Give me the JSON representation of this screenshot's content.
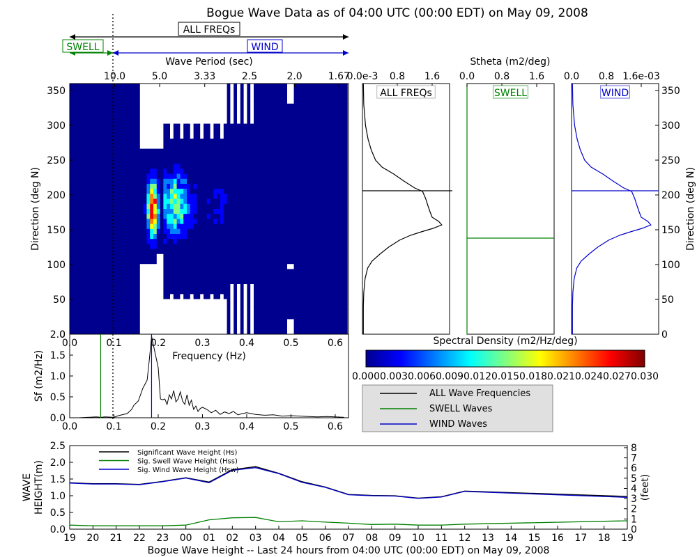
{
  "title": "Bogue Wave Data as of 04:00 UTC (00:00 EDT) on May 09, 2008",
  "colors": {
    "all": "#000000",
    "swell": "#008000",
    "wind": "#0000cc",
    "colormap": [
      "#00008f",
      "#0000ff",
      "#0080ff",
      "#00ffff",
      "#80ff80",
      "#ffff00",
      "#ff8000",
      "#ff0000",
      "#800000"
    ]
  },
  "bands": {
    "all_label": "ALL FREQs",
    "swell_label": "SWELL",
    "wind_label": "WIND"
  },
  "spectrogram": {
    "period_axis_label": "Wave Period (sec)",
    "period_ticks": [
      "10.0",
      "5.0",
      "3.33",
      "2.5",
      "2.0",
      "1.67"
    ],
    "freq_axis_label": "Frequency (Hz)",
    "freq_ticks": [
      "0.0",
      "0.1",
      "0.2",
      "0.3",
      "0.4",
      "0.5",
      "0.6"
    ],
    "dir_axis_label": "Direction (deg N)",
    "dir_ticks": [
      "0",
      "50",
      "100",
      "150",
      "200",
      "250",
      "300",
      "350"
    ],
    "xlim": [
      0,
      0.62
    ],
    "ylim": [
      0,
      360
    ]
  },
  "stheta": {
    "axis_title": "Stheta (m2/deg)",
    "panels": [
      {
        "label": "ALL FREQs",
        "ticks": [
          "0.0e-3",
          "0.8",
          "1.6"
        ],
        "xmax": 2.0,
        "peak_dir": 206,
        "profile": [
          [
            0,
            0.02
          ],
          [
            20,
            0.02
          ],
          [
            40,
            0.02
          ],
          [
            60,
            0.03
          ],
          [
            80,
            0.06
          ],
          [
            95,
            0.12
          ],
          [
            105,
            0.22
          ],
          [
            115,
            0.4
          ],
          [
            125,
            0.6
          ],
          [
            135,
            0.85
          ],
          [
            142,
            1.1
          ],
          [
            147,
            1.35
          ],
          [
            152,
            1.62
          ],
          [
            157,
            1.82
          ],
          [
            162,
            1.75
          ],
          [
            168,
            1.6
          ],
          [
            176,
            1.55
          ],
          [
            185,
            1.5
          ],
          [
            195,
            1.45
          ],
          [
            205,
            1.38
          ],
          [
            210,
            1.2
          ],
          [
            220,
            0.95
          ],
          [
            230,
            0.72
          ],
          [
            240,
            0.45
          ],
          [
            250,
            0.3
          ],
          [
            265,
            0.2
          ],
          [
            280,
            0.13
          ],
          [
            300,
            0.07
          ],
          [
            330,
            0.03
          ],
          [
            360,
            0.02
          ]
        ]
      },
      {
        "label": "SWELL",
        "ticks": [
          "0.0",
          "0.8",
          "1.6"
        ],
        "xmax": 2.0,
        "peak_dir": 138,
        "profile": [
          [
            0,
            0.0
          ],
          [
            360,
            0.0
          ]
        ]
      },
      {
        "label": "WIND",
        "ticks": [
          "0.0",
          "0.8",
          "1.6e-03"
        ],
        "xmax": 2.0,
        "peak_dir": 206,
        "profile": [
          [
            0,
            0.02
          ],
          [
            20,
            0.02
          ],
          [
            40,
            0.02
          ],
          [
            60,
            0.03
          ],
          [
            80,
            0.06
          ],
          [
            95,
            0.12
          ],
          [
            105,
            0.22
          ],
          [
            115,
            0.4
          ],
          [
            125,
            0.6
          ],
          [
            135,
            0.85
          ],
          [
            142,
            1.1
          ],
          [
            147,
            1.35
          ],
          [
            152,
            1.62
          ],
          [
            157,
            1.82
          ],
          [
            162,
            1.75
          ],
          [
            168,
            1.6
          ],
          [
            176,
            1.55
          ],
          [
            185,
            1.5
          ],
          [
            195,
            1.45
          ],
          [
            205,
            1.38
          ],
          [
            210,
            1.2
          ],
          [
            220,
            0.95
          ],
          [
            230,
            0.72
          ],
          [
            240,
            0.45
          ],
          [
            250,
            0.3
          ],
          [
            265,
            0.2
          ],
          [
            280,
            0.13
          ],
          [
            300,
            0.07
          ],
          [
            330,
            0.03
          ],
          [
            360,
            0.02
          ]
        ]
      }
    ],
    "ticks_right": [
      "0",
      "50",
      "100",
      "150",
      "200",
      "250",
      "300",
      "350"
    ],
    "right_label": "Direction (deg N)"
  },
  "colorbar": {
    "label": "Spectral Density (m2/Hz/deg)",
    "ticks": [
      "0.000",
      "0.003",
      "0.006",
      "0.009",
      "0.012",
      "0.015",
      "0.018",
      "0.021",
      "0.024",
      "0.027",
      "0.030"
    ]
  },
  "legend_spectrum": [
    "ALL Wave Frequencies",
    "SWELL Waves",
    "WIND Waves"
  ],
  "chart_data": [
    {
      "type": "line",
      "title": "",
      "xlabel": "Frequency (Hz)",
      "ylabel": "Sf (m2/Hz)",
      "xlim": [
        0,
        0.63
      ],
      "ylim": [
        0,
        2.0
      ],
      "yticks": [
        "0.0",
        "0.5",
        "1.0",
        "1.5",
        "2.0"
      ],
      "xticks": [
        "0.0",
        "0.1",
        "0.2",
        "0.3",
        "0.4",
        "0.5",
        "0.6"
      ],
      "swell_peak_freq": 0.07,
      "wind_peak_freq": 0.185,
      "series": [
        {
          "x": [
            0.0,
            0.02,
            0.04,
            0.06,
            0.07,
            0.08,
            0.1,
            0.11,
            0.13,
            0.14,
            0.145,
            0.155,
            0.165,
            0.175,
            0.18,
            0.185,
            0.19,
            0.2,
            0.205,
            0.21,
            0.215,
            0.22,
            0.225,
            0.23,
            0.235,
            0.24,
            0.245,
            0.25,
            0.255,
            0.26,
            0.265,
            0.27,
            0.275,
            0.28,
            0.285,
            0.29,
            0.295,
            0.3,
            0.31,
            0.32,
            0.33,
            0.34,
            0.35,
            0.36,
            0.37,
            0.38,
            0.39,
            0.4,
            0.42,
            0.44,
            0.46,
            0.48,
            0.5,
            0.52,
            0.54,
            0.56,
            0.58,
            0.6,
            0.62
          ],
          "y": [
            0.0,
            0.0,
            0.01,
            0.02,
            0.01,
            0.02,
            0.01,
            0.05,
            0.1,
            0.2,
            0.3,
            0.4,
            0.7,
            0.9,
            1.4,
            1.95,
            1.7,
            1.2,
            0.45,
            0.43,
            0.45,
            0.32,
            0.55,
            0.45,
            0.65,
            0.38,
            0.45,
            0.62,
            0.4,
            0.32,
            0.55,
            0.3,
            0.42,
            0.2,
            0.28,
            0.15,
            0.22,
            0.25,
            0.2,
            0.12,
            0.18,
            0.08,
            0.14,
            0.1,
            0.15,
            0.07,
            0.1,
            0.12,
            0.08,
            0.06,
            0.07,
            0.04,
            0.05,
            0.04,
            0.03,
            0.02,
            0.03,
            0.02,
            0.01
          ]
        }
      ]
    },
    {
      "type": "line",
      "title": "",
      "xlabel": "Bogue Wave Height -- Last 24 hours from 04:00 UTC (00:00 EDT) on May 09, 2008",
      "ylabel": "WAVE HEIGHT(m)",
      "ylabel_right": "(feet)",
      "categories": [
        "19",
        "20",
        "21",
        "22",
        "23",
        "00",
        "01",
        "02",
        "03",
        "04",
        "05",
        "06",
        "07",
        "08",
        "09",
        "10",
        "11",
        "12",
        "13",
        "14",
        "15",
        "16",
        "17",
        "18",
        "19"
      ],
      "ylim": [
        0,
        2.5
      ],
      "yticks": [
        "0.0",
        "0.5",
        "1.0",
        "1.5",
        "2.0",
        "2.5"
      ],
      "yticks_right": [
        "0",
        "1",
        "2",
        "3",
        "4",
        "5",
        "6",
        "7",
        "8"
      ],
      "legend_position": "top-left",
      "series": [
        {
          "name": "Significant Wave Height (Hs)",
          "color": "#000000",
          "x": [
            0,
            1,
            2,
            3,
            4,
            5,
            6,
            7,
            8,
            9,
            10,
            11,
            12,
            13,
            14,
            15,
            16,
            17,
            24
          ],
          "values": [
            1.39,
            1.36,
            1.36,
            1.34,
            1.43,
            1.54,
            1.41,
            1.78,
            1.87,
            1.67,
            1.42,
            1.26,
            1.04,
            1.01,
            1.0,
            0.93,
            0.97,
            1.14,
            0.98
          ]
        },
        {
          "name": "Sig. Swell Wave Height (Hss)",
          "color": "#008000",
          "x": [
            0,
            1,
            2,
            3,
            4,
            5,
            6,
            7,
            8,
            9,
            10,
            11,
            12,
            13,
            14,
            15,
            16,
            17,
            24
          ],
          "values": [
            0.12,
            0.1,
            0.1,
            0.1,
            0.1,
            0.12,
            0.28,
            0.34,
            0.35,
            0.22,
            0.25,
            0.21,
            0.18,
            0.14,
            0.15,
            0.12,
            0.12,
            0.15,
            0.25
          ]
        },
        {
          "name": "Sig. Wind Wave Height (Hsw)",
          "color": "#0000cc",
          "x": [
            0,
            1,
            2,
            3,
            4,
            5,
            6,
            7,
            8,
            9,
            10,
            11,
            12,
            13,
            14,
            15,
            16,
            17,
            24
          ],
          "values": [
            1.38,
            1.35,
            1.35,
            1.33,
            1.42,
            1.53,
            1.39,
            1.76,
            1.84,
            1.66,
            1.4,
            1.25,
            1.03,
            1.0,
            0.99,
            0.92,
            0.96,
            1.13,
            0.95
          ]
        }
      ]
    }
  ]
}
